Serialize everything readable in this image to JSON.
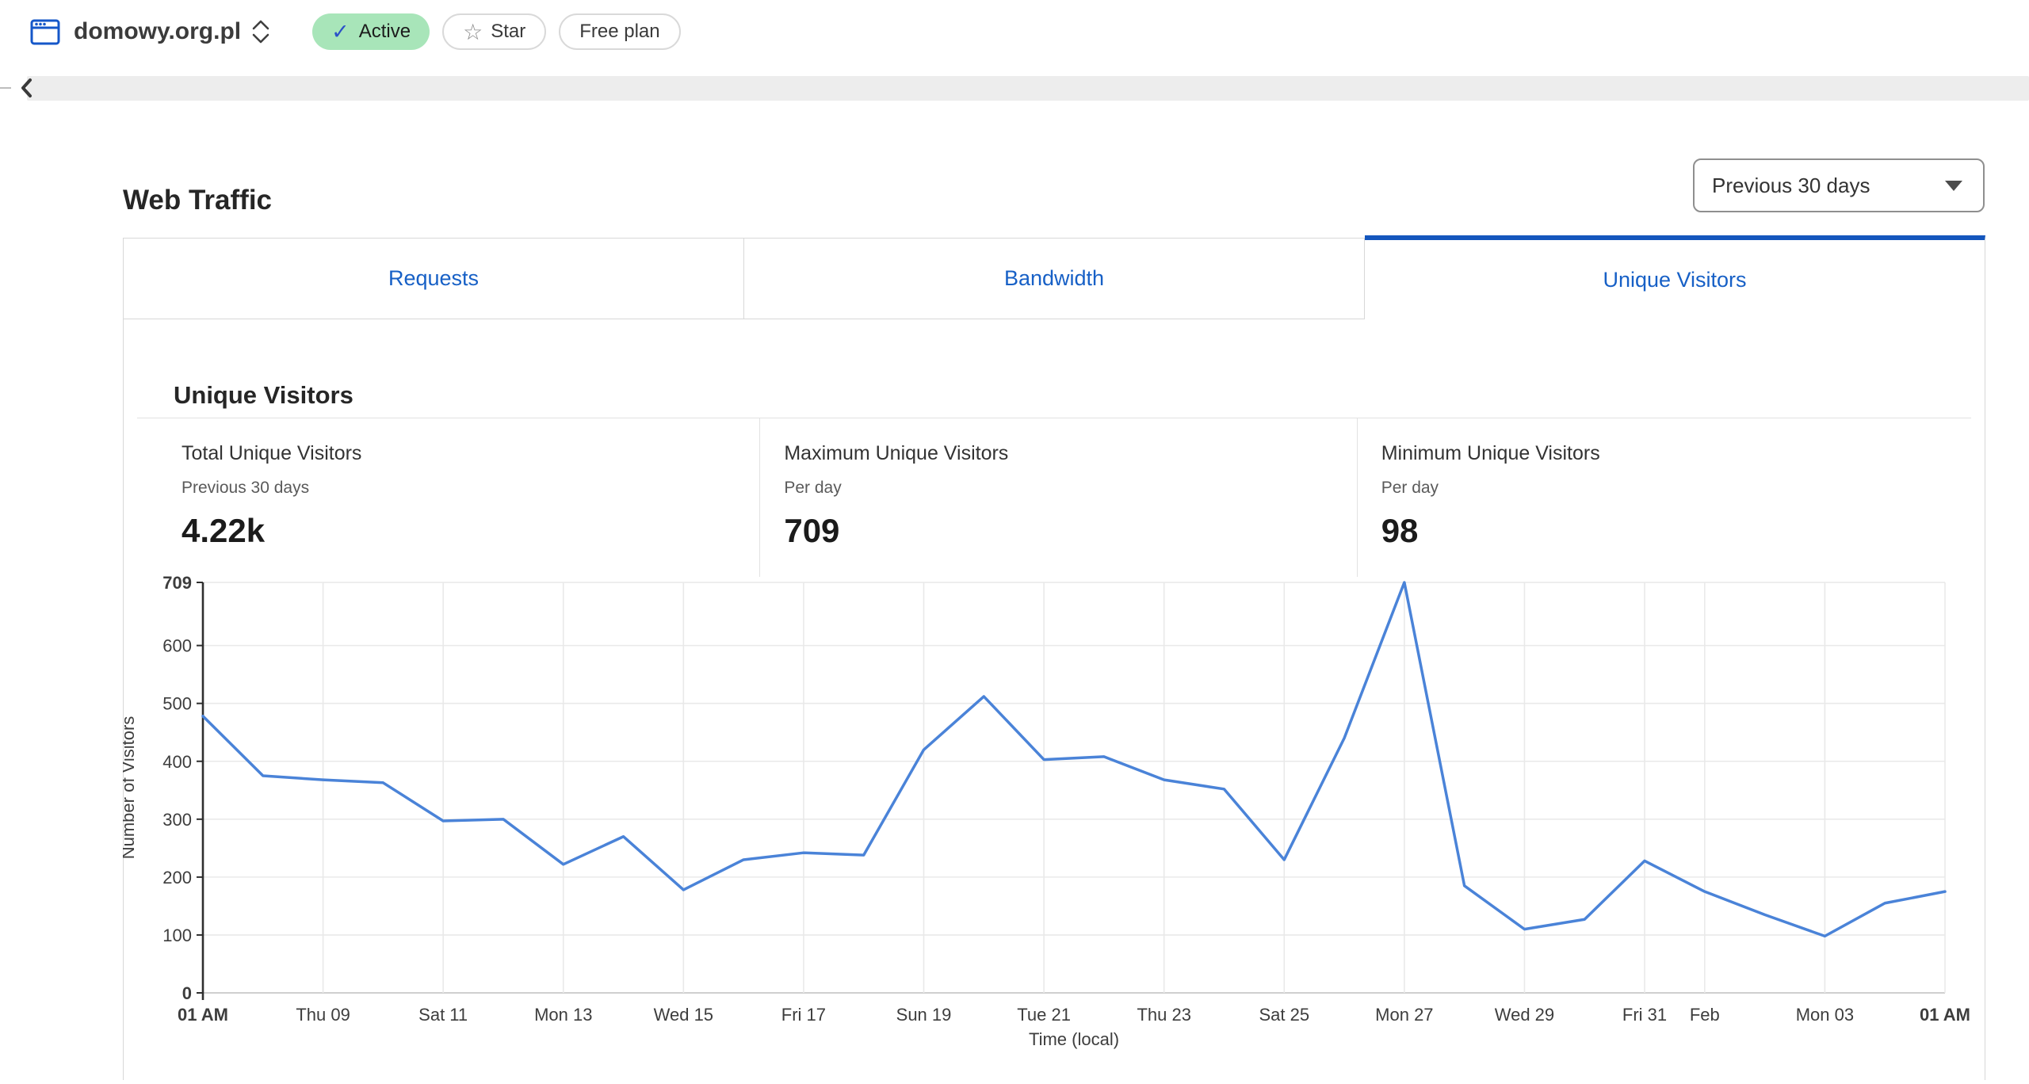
{
  "colors": {
    "accent_blue": "#1456bd",
    "link_blue": "#1760c6",
    "chart_line": "#4a83d8",
    "active_badge_bg": "#a8e5b9",
    "check_blue": "#2b50c8",
    "grid": "#e9e9e9",
    "axis_dark": "#2f2f2f"
  },
  "header": {
    "domain": "domowy.org.pl",
    "active_label": "Active",
    "check_icon": "✓",
    "star_icon": "☆",
    "star_label": "Star",
    "plan_label": "Free plan"
  },
  "page": {
    "title": "Web Traffic",
    "range_value": "Previous 30 days"
  },
  "tabs": [
    {
      "label": "Requests"
    },
    {
      "label": "Bandwidth"
    },
    {
      "label": "Unique Visitors"
    }
  ],
  "panel": {
    "heading": "Unique Visitors",
    "stats": [
      {
        "label": "Total Unique Visitors",
        "sublabel": "Previous 30 days",
        "value": "4.22k"
      },
      {
        "label": "Maximum Unique Visitors",
        "sublabel": "Per day",
        "value": "709"
      },
      {
        "label": "Minimum Unique Visitors",
        "sublabel": "Per day",
        "value": "98"
      }
    ]
  },
  "chart_data": {
    "type": "line",
    "title": "Unique Visitors",
    "xlabel": "Time (local)",
    "ylabel": "Number of Visitors",
    "x_dates": [
      "Jan 07",
      "Jan 08",
      "Jan 09",
      "Jan 10",
      "Jan 11",
      "Jan 12",
      "Jan 13",
      "Jan 14",
      "Jan 15",
      "Jan 16",
      "Jan 17",
      "Jan 18",
      "Jan 19",
      "Jan 20",
      "Jan 21",
      "Jan 22",
      "Jan 23",
      "Jan 24",
      "Jan 25",
      "Jan 26",
      "Jan 27",
      "Jan 28",
      "Jan 29",
      "Jan 30",
      "Jan 31",
      "Feb 01",
      "Feb 02",
      "Feb 03",
      "Feb 04",
      "Feb 05"
    ],
    "values": [
      478,
      375,
      368,
      363,
      297,
      300,
      222,
      270,
      178,
      230,
      242,
      238,
      420,
      512,
      403,
      408,
      368,
      352,
      230,
      440,
      709,
      185,
      110,
      127,
      228,
      175,
      135,
      98,
      155,
      175
    ],
    "x_tick_labels": [
      "01 AM",
      "Thu 09",
      "Sat 11",
      "Mon 13",
      "Wed 15",
      "Fri 17",
      "Sun 19",
      "Tue 21",
      "Thu 23",
      "Sat 25",
      "Mon 27",
      "Wed 29",
      "Fri 31",
      "Feb",
      "Mon 03",
      "01 AM"
    ],
    "x_tick_day_index": [
      0,
      2,
      4,
      6,
      8,
      10,
      12,
      14,
      16,
      18,
      20,
      22,
      24,
      25,
      27,
      29
    ],
    "y_ticks": [
      0,
      100,
      200,
      300,
      400,
      500,
      600,
      709
    ],
    "ylim": [
      0,
      709
    ],
    "grid": true,
    "legend": "none",
    "line_color": "#4a83d8"
  }
}
